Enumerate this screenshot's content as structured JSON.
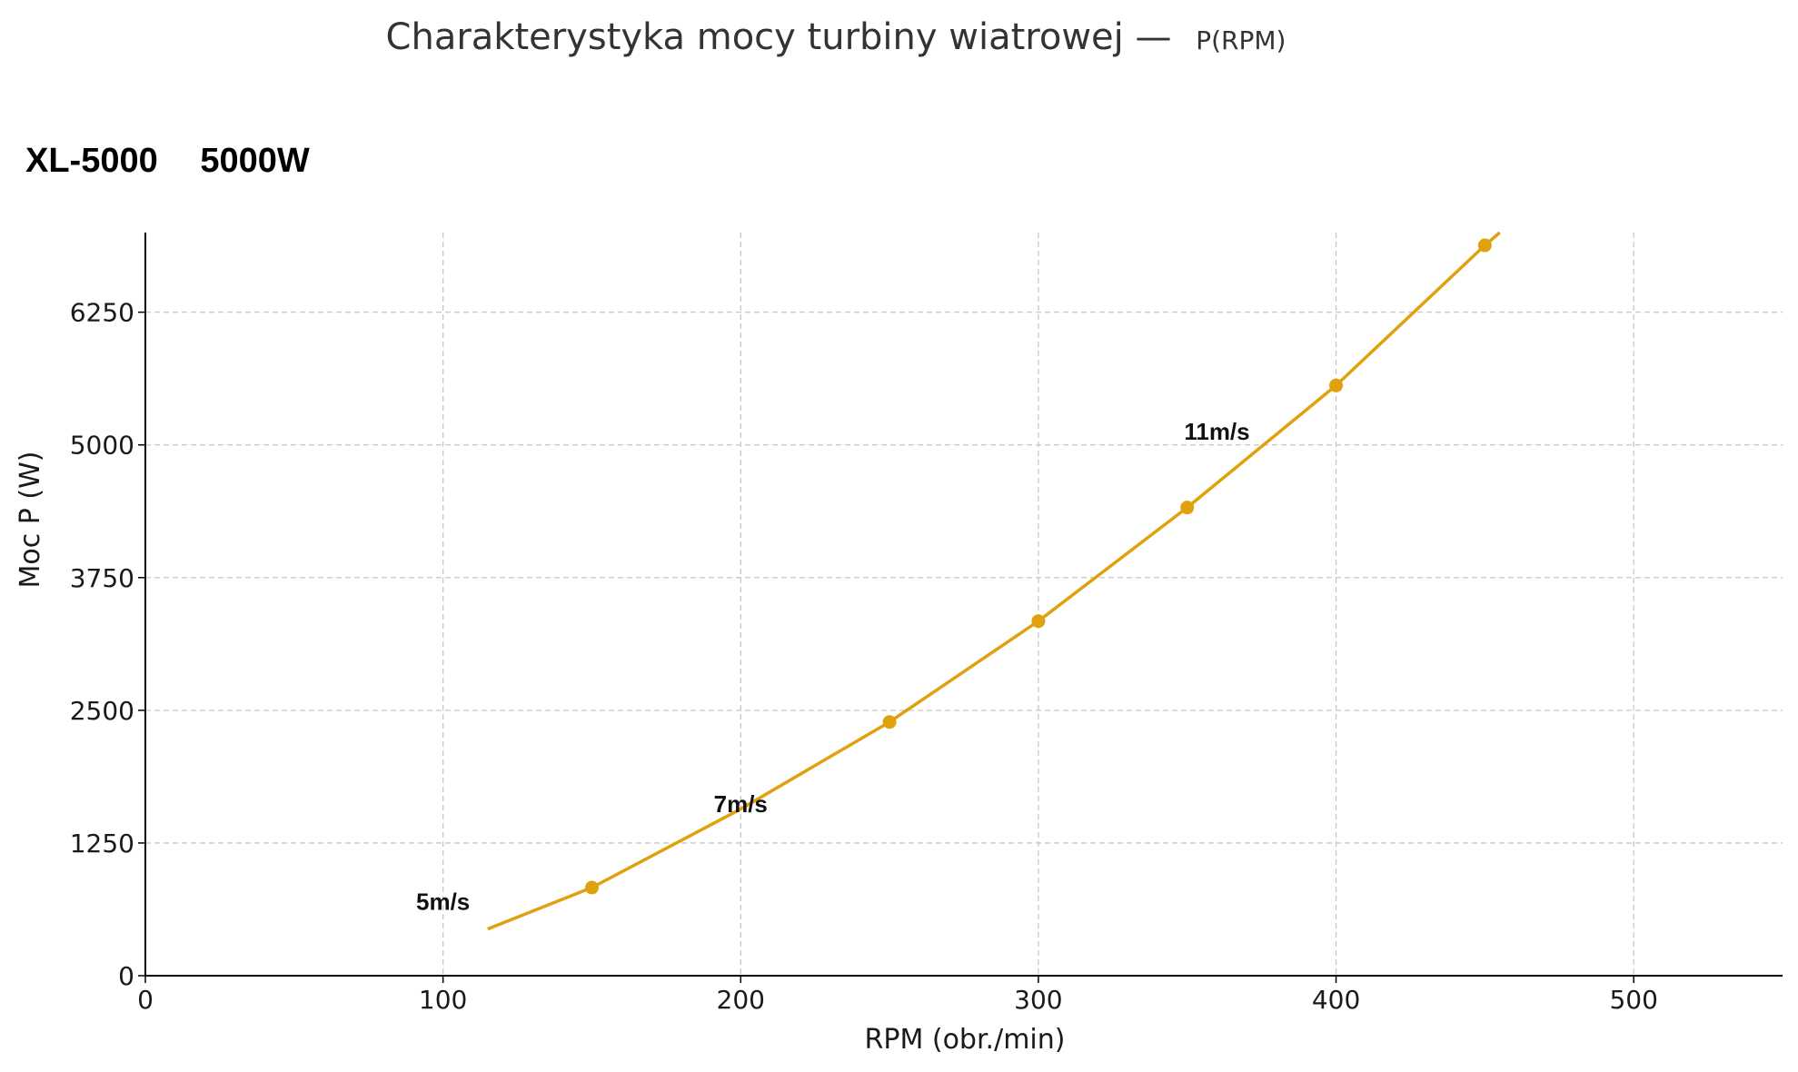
{
  "chart_data": {
    "type": "line",
    "title": "Charakterystyka mocy turbiny wiatrowej —",
    "title_suffix": "P(RPM)",
    "model": "XL-5000",
    "rated_power": "5000W",
    "xlabel": "RPM (obr./min)",
    "ylabel": "Moc P (W)",
    "xlim": [
      0,
      550
    ],
    "ylim": [
      0,
      7000
    ],
    "xticks": [
      0,
      100,
      200,
      300,
      400,
      500
    ],
    "yticks": [
      0,
      1250,
      2500,
      3750,
      5000,
      6250
    ],
    "grid": true,
    "series": [
      {
        "color": "#E0A10E",
        "line_x": [
          115,
          150,
          200,
          250,
          300,
          350,
          400,
          450,
          455
        ],
        "line_y": [
          440,
          830,
          1570,
          2390,
          3340,
          4410,
          5560,
          6880,
          7000
        ],
        "marker_x": [
          150,
          250,
          300,
          350,
          400,
          450
        ],
        "marker_y": [
          830,
          2390,
          3340,
          4410,
          5560,
          6880
        ]
      }
    ],
    "annotations": [
      {
        "text": "5m/s",
        "x": 100,
        "y": 620
      },
      {
        "text": "7m/s",
        "x": 200,
        "y": 1540
      },
      {
        "text": "11m/s",
        "x": 360,
        "y": 5050
      }
    ]
  }
}
